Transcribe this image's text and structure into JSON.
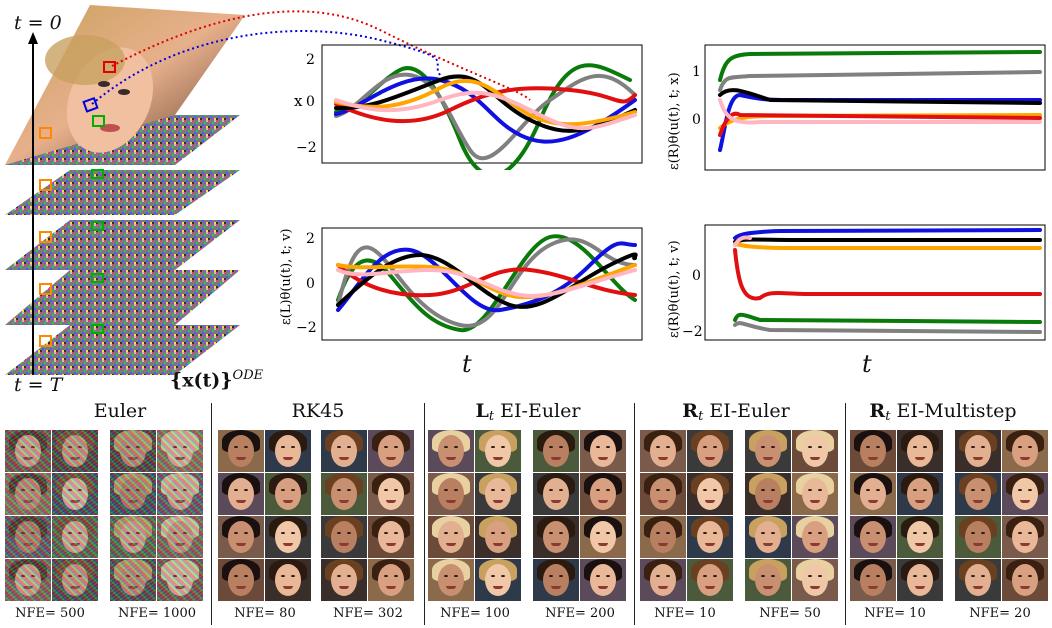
{
  "labels": {
    "t0": "t = 0",
    "tT": "t = T",
    "traj": "{x(t)}",
    "traj_sup": "ODE",
    "t_axis_left": "t",
    "t_axis_right": "t"
  },
  "plots": {
    "tl_ylabel": "x",
    "bl_ylabel": "ε(L)θ(u(t), t; v)",
    "tr_ylabel": "ε(R)θ(u(t), t; x)",
    "br_ylabel": "ε(R)θ(u(t), t; v)",
    "tl_ticks": [
      "2",
      "0",
      "−2"
    ],
    "bl_ticks": [
      "2",
      "0",
      "−2"
    ],
    "tr_ticks": [
      "1",
      "0"
    ],
    "br_ticks": [
      "0",
      "−2"
    ]
  },
  "colors": {
    "blue": "#1010e0",
    "green": "#0a7a0a",
    "gray": "#808080",
    "black": "#000000",
    "red": "#e01010",
    "orange": "#ffa500",
    "pink": "#ffb6c1"
  },
  "methods": [
    {
      "title": "Euler",
      "nfe_a": "NFE= 500",
      "nfe_b": "NFE= 1000"
    },
    {
      "title": "RK45",
      "nfe_a": "NFE= 80",
      "nfe_b": "NFE= 302"
    },
    {
      "title_bold": "L",
      "title_sub": "t",
      "title_rest": " EI-Euler",
      "nfe_a": "NFE= 100",
      "nfe_b": "NFE= 200"
    },
    {
      "title_bold": "R",
      "title_sub": "t",
      "title_rest": " EI-Euler",
      "nfe_a": "NFE= 10",
      "nfe_b": "NFE= 50"
    },
    {
      "title_bold": "R",
      "title_sub": "t",
      "title_rest": " EI-Multistep",
      "nfe_a": "NFE= 10",
      "nfe_b": "NFE= 20"
    }
  ]
}
